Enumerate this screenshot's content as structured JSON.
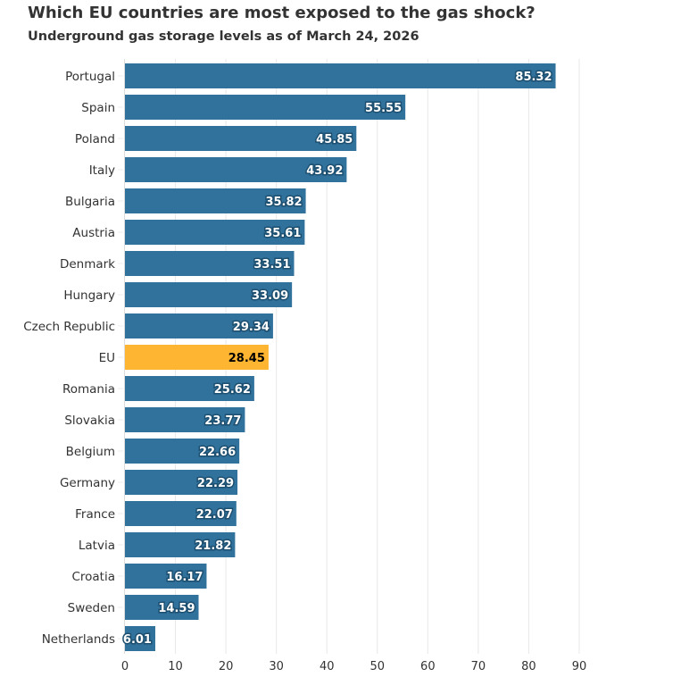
{
  "chart_data": {
    "type": "bar",
    "orientation": "horizontal",
    "title": "Which EU countries are most exposed to the gas shock?",
    "subtitle": "Underground gas storage levels as of March 24, 2026",
    "categories": [
      "Portugal",
      "Spain",
      "Poland",
      "Italy",
      "Bulgaria",
      "Austria",
      "Denmark",
      "Hungary",
      "Czech Republic",
      "EU",
      "Romania",
      "Slovakia",
      "Belgium",
      "Germany",
      "France",
      "Latvia",
      "Croatia",
      "Sweden",
      "Netherlands"
    ],
    "values": [
      85.32,
      55.55,
      45.85,
      43.92,
      35.82,
      35.61,
      33.51,
      33.09,
      29.34,
      28.45,
      25.62,
      23.77,
      22.66,
      22.29,
      22.07,
      21.82,
      16.17,
      14.59,
      6.01
    ],
    "value_labels": [
      "85.32",
      "55.55",
      "45.85",
      "43.92",
      "35.82",
      "35.61",
      "33.51",
      "33.09",
      "29.34",
      "28.45",
      "25.62",
      "23.77",
      "22.66",
      "22.29",
      "22.07",
      "21.82",
      "16.17",
      "14.59",
      "6.01"
    ],
    "highlight": "EU",
    "xlim": [
      0,
      90
    ],
    "xticks": [
      "0",
      "10",
      "20",
      "30",
      "40",
      "50",
      "60",
      "70",
      "80",
      "90"
    ],
    "grid": true,
    "colors": {
      "default": "#31729c",
      "highlight": "#feb531"
    }
  }
}
